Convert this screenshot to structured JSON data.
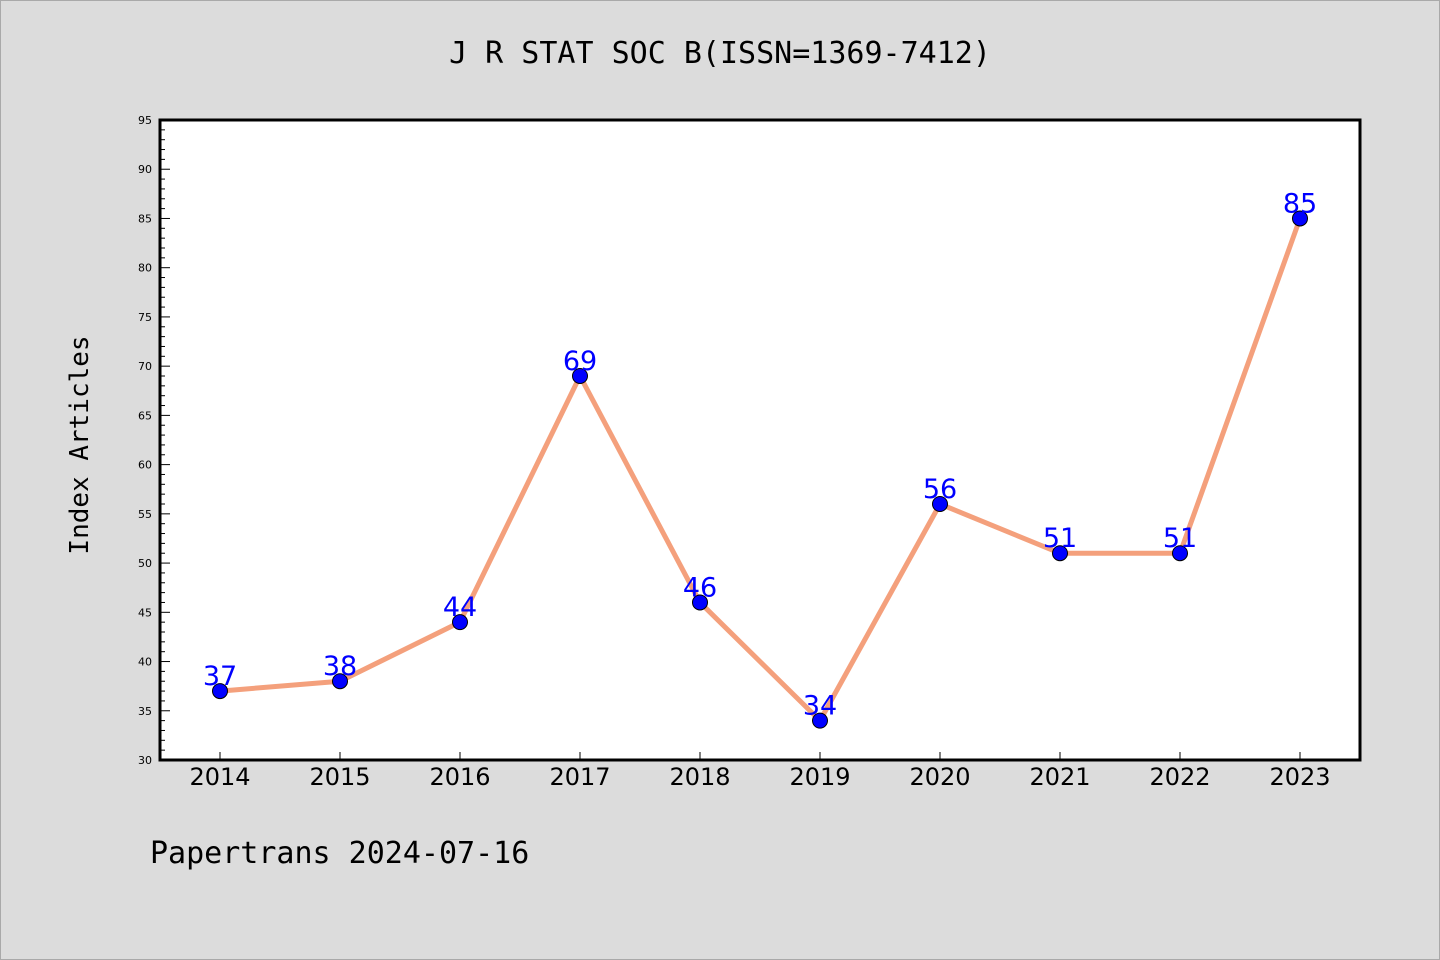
{
  "title": "J R STAT SOC B(ISSN=1369-7412)",
  "footer": "Papertrans 2024-07-16",
  "colors": {
    "background": "#dcdcdc",
    "plot_background": "#ffffff",
    "line": "#f4a07c",
    "marker": "#0000ff",
    "data_label": "#0000ff"
  },
  "chart_data": {
    "type": "line",
    "title": "J R STAT SOC B(ISSN=1369-7412)",
    "xlabel": "",
    "ylabel": "Index Articles",
    "categories": [
      "2014",
      "2015",
      "2016",
      "2017",
      "2018",
      "2019",
      "2020",
      "2021",
      "2022",
      "2023"
    ],
    "values": [
      37,
      38,
      44,
      69,
      46,
      34,
      56,
      51,
      51,
      85
    ],
    "ylim": [
      30,
      95
    ],
    "yticks": [
      30,
      35,
      40,
      45,
      50,
      55,
      60,
      65,
      70,
      75,
      80,
      85,
      90,
      95
    ],
    "data_labels": [
      "37",
      "38",
      "44",
      "69",
      "46",
      "34",
      "56",
      "51",
      "51",
      "85"
    ],
    "grid": false,
    "legend": "none"
  }
}
